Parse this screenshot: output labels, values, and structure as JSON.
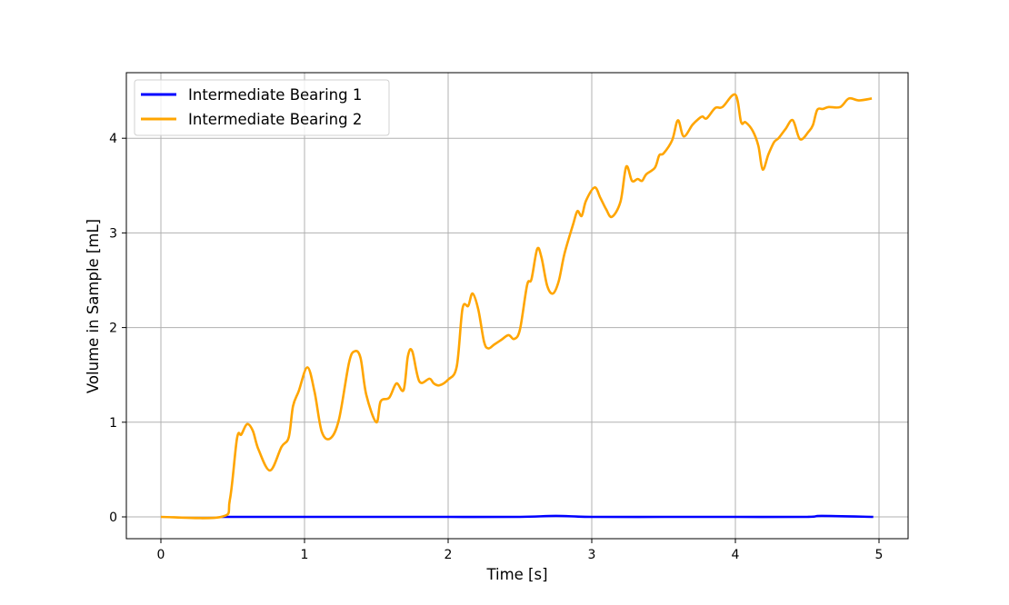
{
  "chart_data": {
    "type": "line",
    "title": "",
    "xlabel": "Time [s]",
    "ylabel": "Volume in Sample [mL]",
    "xlim": [
      -0.25,
      5.2
    ],
    "ylim": [
      -0.22,
      4.7
    ],
    "xticks": [
      "0",
      "1",
      "2",
      "3",
      "4",
      "5"
    ],
    "yticks": [
      "0",
      "1",
      "2",
      "3",
      "4"
    ],
    "grid": true,
    "legend_position": "upper left",
    "series": [
      {
        "name": "Intermediate Bearing 1",
        "color": "#0000ff",
        "x": [
          0.42,
          1.0,
          1.5,
          2.0,
          2.5,
          2.75,
          3.0,
          3.5,
          4.0,
          4.5,
          4.6,
          4.96
        ],
        "y": [
          0.0,
          0.0,
          0.0,
          0.0,
          0.0,
          0.01,
          0.0,
          0.0,
          0.0,
          0.0,
          0.01,
          0.0
        ]
      },
      {
        "name": "Intermediate Bearing 2",
        "color": "#ffa500",
        "x": [
          0.0,
          0.42,
          0.48,
          0.53,
          0.56,
          0.6,
          0.64,
          0.68,
          0.76,
          0.84,
          0.89,
          0.92,
          0.96,
          1.02,
          1.07,
          1.12,
          1.18,
          1.24,
          1.31,
          1.35,
          1.39,
          1.43,
          1.5,
          1.53,
          1.59,
          1.64,
          1.69,
          1.72,
          1.75,
          1.8,
          1.87,
          1.9,
          1.94,
          2.0,
          2.06,
          2.1,
          2.14,
          2.17,
          2.21,
          2.25,
          2.28,
          2.32,
          2.37,
          2.42,
          2.46,
          2.5,
          2.55,
          2.58,
          2.62,
          2.65,
          2.69,
          2.73,
          2.77,
          2.81,
          2.87,
          2.9,
          2.93,
          2.96,
          3.02,
          3.06,
          3.1,
          3.14,
          3.2,
          3.24,
          3.28,
          3.32,
          3.35,
          3.38,
          3.44,
          3.47,
          3.5,
          3.56,
          3.6,
          3.64,
          3.7,
          3.74,
          3.77,
          3.8,
          3.86,
          3.91,
          4.0,
          4.04,
          4.07,
          4.12,
          4.16,
          4.19,
          4.23,
          4.27,
          4.3,
          4.35,
          4.4,
          4.45,
          4.51,
          4.54,
          4.57,
          4.61,
          4.65,
          4.73,
          4.79,
          4.86,
          4.95
        ],
        "y": [
          0.0,
          0.0,
          0.18,
          0.83,
          0.87,
          0.98,
          0.91,
          0.71,
          0.49,
          0.74,
          0.84,
          1.17,
          1.33,
          1.58,
          1.32,
          0.9,
          0.83,
          1.03,
          1.63,
          1.75,
          1.68,
          1.29,
          1.0,
          1.22,
          1.26,
          1.41,
          1.34,
          1.7,
          1.75,
          1.43,
          1.46,
          1.41,
          1.39,
          1.45,
          1.59,
          2.2,
          2.23,
          2.36,
          2.19,
          1.85,
          1.78,
          1.82,
          1.87,
          1.92,
          1.88,
          1.98,
          2.45,
          2.51,
          2.83,
          2.74,
          2.44,
          2.36,
          2.49,
          2.78,
          3.09,
          3.23,
          3.18,
          3.34,
          3.48,
          3.37,
          3.25,
          3.17,
          3.33,
          3.7,
          3.55,
          3.57,
          3.55,
          3.62,
          3.69,
          3.82,
          3.84,
          3.98,
          4.19,
          4.02,
          4.14,
          4.2,
          4.23,
          4.21,
          4.32,
          4.33,
          4.46,
          4.17,
          4.17,
          4.08,
          3.92,
          3.67,
          3.83,
          3.96,
          4.0,
          4.1,
          4.19,
          3.99,
          4.07,
          4.14,
          4.3,
          4.31,
          4.33,
          4.33,
          4.42,
          4.4,
          4.42
        ]
      }
    ]
  },
  "legend": {
    "items": [
      "Intermediate Bearing 1",
      "Intermediate Bearing 2"
    ]
  }
}
